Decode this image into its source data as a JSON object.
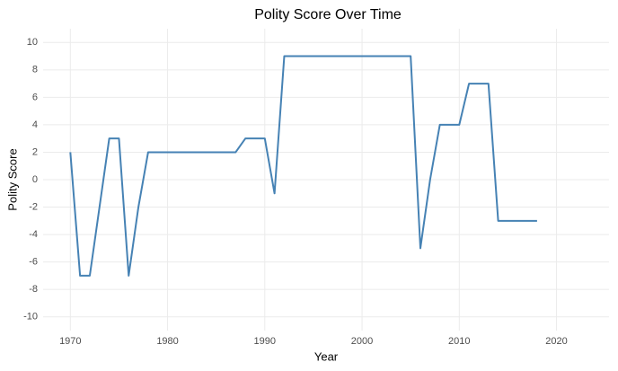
{
  "chart_data": {
    "type": "line",
    "title": "Polity Score Over Time",
    "x_label": "Year",
    "y_label": "Polity Score",
    "x": [
      1970,
      1971,
      1972,
      1973,
      1974,
      1975,
      1976,
      1977,
      1978,
      1979,
      1980,
      1981,
      1982,
      1983,
      1984,
      1985,
      1986,
      1987,
      1988,
      1989,
      1990,
      1991,
      1992,
      1993,
      1994,
      1995,
      1996,
      1997,
      1998,
      1999,
      2000,
      2001,
      2002,
      2003,
      2004,
      2005,
      2006,
      2007,
      2008,
      2009,
      2010,
      2011,
      2012,
      2013,
      2014,
      2015,
      2016,
      2017,
      2018
    ],
    "series": [
      {
        "name": "Polity Score",
        "color": "#4682b4",
        "values": [
          2,
          -7,
          -7,
          -2,
          3,
          3,
          -7,
          -2,
          2,
          2,
          2,
          2,
          2,
          2,
          2,
          2,
          2,
          2,
          3,
          3,
          3,
          -1,
          9,
          9,
          9,
          9,
          9,
          9,
          9,
          9,
          9,
          9,
          9,
          9,
          9,
          9,
          -5,
          0,
          4,
          4,
          4,
          7,
          7,
          7,
          -3,
          -3,
          -3,
          -3,
          -3
        ]
      }
    ],
    "xlim": [
      1967.2,
      2025.4
    ],
    "xticks": [
      1970,
      1980,
      1990,
      2000,
      2010,
      2020
    ],
    "ylim": [
      -11,
      11
    ],
    "yticks": [
      -10,
      -8,
      -6,
      -4,
      -2,
      0,
      2,
      4,
      6,
      8,
      10
    ],
    "grid": true
  }
}
